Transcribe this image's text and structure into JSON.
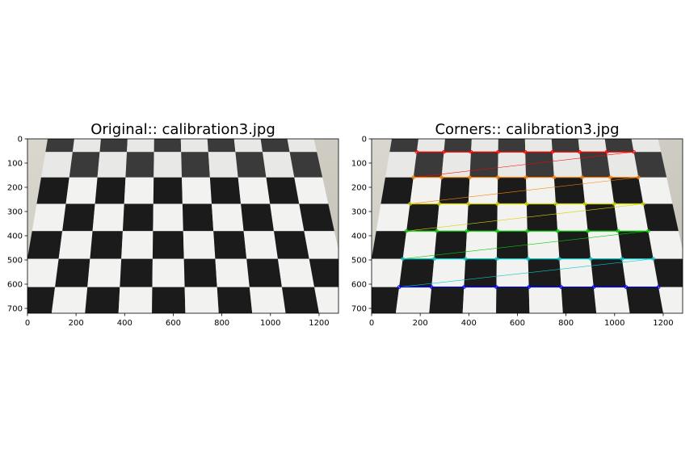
{
  "chart_data": [
    {
      "type": "image",
      "title": "Original:: calibration3.jpg",
      "xlim": [
        0,
        1280
      ],
      "ylim": [
        720,
        0
      ],
      "xticks": [
        0,
        200,
        400,
        600,
        800,
        1000,
        1200
      ],
      "yticks": [
        0,
        100,
        200,
        300,
        400,
        500,
        600,
        700
      ],
      "grid": false,
      "image_content": "checkerboard",
      "corners_drawn": false
    },
    {
      "type": "image",
      "title": "Corners:: calibration3.jpg",
      "xlim": [
        0,
        1280
      ],
      "ylim": [
        720,
        0
      ],
      "xticks": [
        0,
        200,
        400,
        600,
        800,
        1000,
        1200
      ],
      "yticks": [
        0,
        100,
        200,
        300,
        400,
        500,
        600,
        700
      ],
      "grid": false,
      "image_content": "checkerboard",
      "corners_drawn": true,
      "pattern_size": [
        9,
        6
      ],
      "corner_row_colors": [
        "#ff0000",
        "#ff8000",
        "#d4d400",
        "#00d000",
        "#00c8c8",
        "#0000ff"
      ]
    }
  ]
}
